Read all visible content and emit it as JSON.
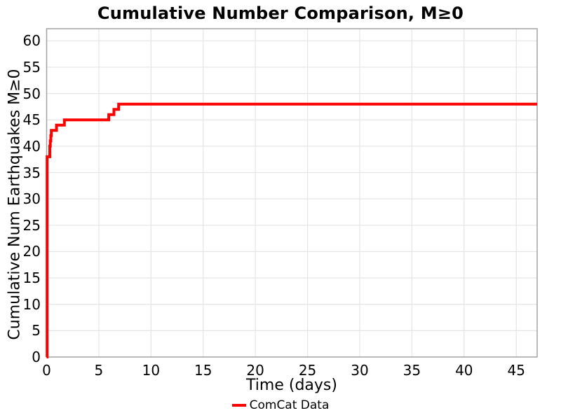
{
  "figure": {
    "background": "#ffffff"
  },
  "chart_data": {
    "type": "line",
    "step_style": "post",
    "title": "Cumulative Number Comparison, M≥0",
    "xlabel": "Time (days)",
    "ylabel": "Cumulative Num Earthquakes M≥0",
    "xlim": [
      0,
      47
    ],
    "ylim": [
      0,
      62.3
    ],
    "xticks": [
      0,
      5,
      10,
      15,
      20,
      25,
      30,
      35,
      40,
      45
    ],
    "yticks": [
      0,
      5,
      10,
      15,
      20,
      25,
      30,
      35,
      40,
      45,
      50,
      55,
      60
    ],
    "grid": true,
    "legend": {
      "position": "bottom-center",
      "entries": [
        {
          "label": "ComCat Data",
          "color": "#ff0000"
        }
      ]
    },
    "series": [
      {
        "name": "ComCat Data",
        "color": "#ff0000",
        "line_width": 4,
        "x": [
          0,
          0.05,
          0.3,
          0.35,
          0.4,
          0.45,
          0.95,
          1.7,
          5.95,
          6.45,
          6.9,
          47
        ],
        "y": [
          0,
          38,
          40,
          41,
          42,
          43,
          44,
          45,
          46,
          47,
          48,
          48
        ]
      }
    ],
    "colors": {
      "grid": "#e5e5e5",
      "spine": "#a3a3a3",
      "text": "#000000"
    }
  }
}
